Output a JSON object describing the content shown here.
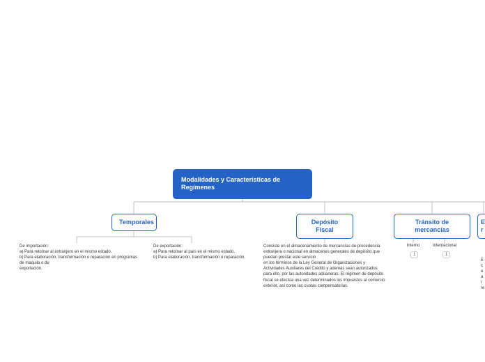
{
  "root": {
    "title": "Modalidades y Características de Regímenes"
  },
  "branches": {
    "temporales": {
      "label": "Temporales",
      "importacion": "De importación:\na) Para retornar al extranjero en el mismo estado.\nb) Para elaboración, transformación o reparación en programas de maquila o de\nexportación.",
      "exportacion": "De exportación:\na) Para retornar al país en el mismo estado.\nb) Para elaboración, transformación o reparación."
    },
    "deposito": {
      "label": "Depósito Fiscal",
      "desc": "Consiste en el almacenamiento de mercancías de procedencia extranjera o nacional en almacenes generales de depósito que puedan prestar este servicio\nen los términos de la Ley General de Organizaciones y Actividades Auxiliares del Crédito y además sean autorizados para ello, por las autoridades aduaneras. El régimen de depósito fiscal se efectúa una vez determinados los impuestos al comercio exterior, así como las cuotas compensatorias."
    },
    "transito": {
      "label": "Tránsito de mercancías",
      "interno": {
        "label": "Interno",
        "count": "1"
      },
      "internacional": {
        "label": "Internacional",
        "count": "1"
      }
    },
    "elaboracion": {
      "label_line1": "E",
      "label_line2": "r",
      "desc": "E\nc\ne\na\nr\nre"
    }
  },
  "colors": {
    "root_bg": "#2563c7",
    "root_text": "#ffffff",
    "branch_border": "#2563c7",
    "branch_text": "#2563c7",
    "connector": "#bfbfbf"
  }
}
